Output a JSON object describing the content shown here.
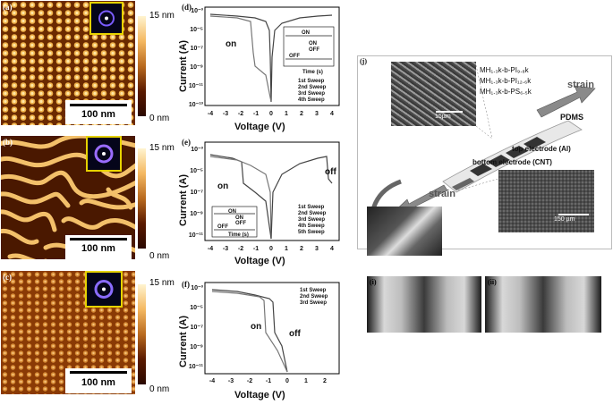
{
  "afm_panels": [
    {
      "letter": "(a)",
      "colorbar_top": "15 nm",
      "colorbar_bottom": "0 nm",
      "scalebar": "100 nm"
    },
    {
      "letter": "(b)",
      "colorbar_top": "15 nm",
      "colorbar_bottom": "0 nm",
      "scalebar": "100 nm"
    },
    {
      "letter": "(c)",
      "colorbar_top": "15 nm",
      "colorbar_bottom": "0 nm",
      "scalebar": "100 nm"
    }
  ],
  "plots": [
    {
      "letter": "(d)",
      "ylabel": "Current (A)",
      "xlabel": "Voltage (V)",
      "xticks": [
        "-4",
        "-3",
        "-2",
        "-1",
        "0",
        "1",
        "2",
        "3",
        "4"
      ],
      "yticks": [
        "10⁻³",
        "10⁻⁵",
        "10⁻⁷",
        "10⁻⁹",
        "10⁻¹¹",
        "10⁻¹³"
      ],
      "legend": [
        "1st Sweep",
        "2nd Sweep",
        "3rd Sweep",
        "4th Sweep"
      ],
      "annotations": {
        "on": "on"
      },
      "inset": {
        "on": "ON",
        "off": "OFF",
        "xlabel": "Time (s)",
        "ylabel": "Current (A)",
        "legend_on": "ON",
        "legend_off": "OFF",
        "xticks": [
          "0",
          "2000",
          "4000",
          "6000",
          "8000",
          "10000"
        ]
      }
    },
    {
      "letter": "(e)",
      "ylabel": "Current (A)",
      "xlabel": "Voltage (V)",
      "xticks": [
        "-4",
        "-3",
        "-2",
        "-1",
        "0",
        "1",
        "2",
        "3",
        "4"
      ],
      "yticks": [
        "10⁻³",
        "10⁻⁵",
        "10⁻⁷",
        "10⁻⁹",
        "10⁻¹¹"
      ],
      "legend": [
        "1st Sweep",
        "2nd Sweep",
        "3rd Sweep",
        "4th Sweep",
        "5th Sweep"
      ],
      "annotations": {
        "on": "on",
        "off": "off"
      },
      "inset": {
        "on": "ON",
        "off": "OFF",
        "xlabel": "Time (s)",
        "ylabel": "Current (A)",
        "legend_on": "ON",
        "legend_off": "OFF"
      }
    },
    {
      "letter": "(f)",
      "ylabel": "Current (A)",
      "xlabel": "Voltage (V)",
      "xticks": [
        "-4",
        "-3",
        "-2",
        "-1",
        "0",
        "1",
        "2"
      ],
      "yticks": [
        "10⁻³",
        "10⁻⁵",
        "10⁻⁷",
        "10⁻⁹",
        "10⁻¹¹"
      ],
      "legend": [
        "1st Sweep",
        "2nd Sweep",
        "3rd Sweep"
      ],
      "annotations": {
        "on": "on",
        "off": "off"
      }
    }
  ],
  "panel_j": {
    "letter": "(j)",
    "strain_top": "strain",
    "strain_bottom": "strain",
    "pdms": "PDMS",
    "top_electrode": "top electrode (Al)",
    "bottom_electrode": "bottom electrode (CNT)",
    "scale_top": "15µm",
    "scale_bottom": "150 µm",
    "polymer1": "MH₁.₃k-b-PI₉.₈k",
    "polymer2": "MH₁.₃k-b-PI₁₂.₆k",
    "polymer3": "MH₁.₃k-b-PS₆.₅k",
    "photo_i": "(i)",
    "photo_ii": "(ii)"
  },
  "chart_data": [
    {
      "type": "line",
      "xlabel": "Voltage (V)",
      "ylabel": "Current (A)",
      "xlim": [
        -4.5,
        4.5
      ],
      "ylog": true,
      "ylim": [
        1e-13,
        0.001
      ],
      "series": [
        {
          "name": "1st Sweep",
          "x": [
            -4,
            -3,
            -2,
            -1,
            -0.5,
            -0.3,
            -0.1,
            0,
            0.5,
            1,
            2,
            3,
            4
          ],
          "y": [
            0.0001,
            9e-05,
            7e-05,
            4e-05,
            1e-05,
            3e-06,
            1e-08,
            1e-12,
            1e-06,
            1e-05,
            5e-05,
            0.0001,
            0.0002
          ]
        }
      ]
    },
    {
      "type": "line",
      "xlabel": "Voltage (V)",
      "ylabel": "Current (A)",
      "xlim": [
        -4.5,
        4.5
      ],
      "ylog": true
    },
    {
      "type": "line",
      "xlabel": "Voltage (V)",
      "ylabel": "Current (A)",
      "xlim": [
        -4.5,
        2.5
      ],
      "ylog": true
    }
  ]
}
